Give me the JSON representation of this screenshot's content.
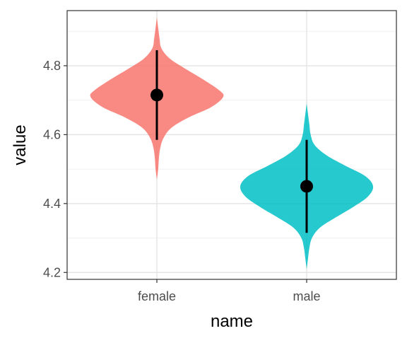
{
  "chart_data": {
    "type": "violin",
    "xlabel": "name",
    "ylabel": "value",
    "categories": [
      "female",
      "male"
    ],
    "ylim": [
      4.18,
      4.96
    ],
    "y_ticks": [
      4.2,
      4.4,
      4.6,
      4.8
    ],
    "y_tick_labels": [
      "4.2",
      "4.4",
      "4.6",
      "4.8"
    ],
    "grid": true,
    "legend": "none",
    "series": [
      {
        "category": "female",
        "color": "#F8766D",
        "mean": 4.715,
        "interval": [
          4.585,
          4.845
        ],
        "density_range": [
          4.47,
          4.94
        ],
        "density_profile": [
          [
            4.47,
            0.0
          ],
          [
            4.5,
            0.02
          ],
          [
            4.53,
            0.03
          ],
          [
            4.56,
            0.05
          ],
          [
            4.59,
            0.1
          ],
          [
            4.62,
            0.22
          ],
          [
            4.65,
            0.48
          ],
          [
            4.68,
            0.82
          ],
          [
            4.71,
            1.0
          ],
          [
            4.73,
            0.93
          ],
          [
            4.76,
            0.7
          ],
          [
            4.79,
            0.44
          ],
          [
            4.82,
            0.2
          ],
          [
            4.85,
            0.07
          ],
          [
            4.88,
            0.04
          ],
          [
            4.91,
            0.02
          ],
          [
            4.94,
            0.0
          ]
        ]
      },
      {
        "category": "male",
        "color": "#00BFC4",
        "mean": 4.45,
        "interval": [
          4.315,
          4.585
        ],
        "density_range": [
          4.21,
          4.69
        ],
        "density_profile": [
          [
            4.21,
            0.0
          ],
          [
            4.24,
            0.02
          ],
          [
            4.27,
            0.04
          ],
          [
            4.3,
            0.08
          ],
          [
            4.33,
            0.2
          ],
          [
            4.36,
            0.44
          ],
          [
            4.39,
            0.7
          ],
          [
            4.42,
            0.92
          ],
          [
            4.45,
            1.0
          ],
          [
            4.48,
            0.88
          ],
          [
            4.51,
            0.58
          ],
          [
            4.54,
            0.3
          ],
          [
            4.57,
            0.12
          ],
          [
            4.6,
            0.06
          ],
          [
            4.63,
            0.04
          ],
          [
            4.66,
            0.02
          ],
          [
            4.69,
            0.0
          ]
        ]
      }
    ]
  }
}
